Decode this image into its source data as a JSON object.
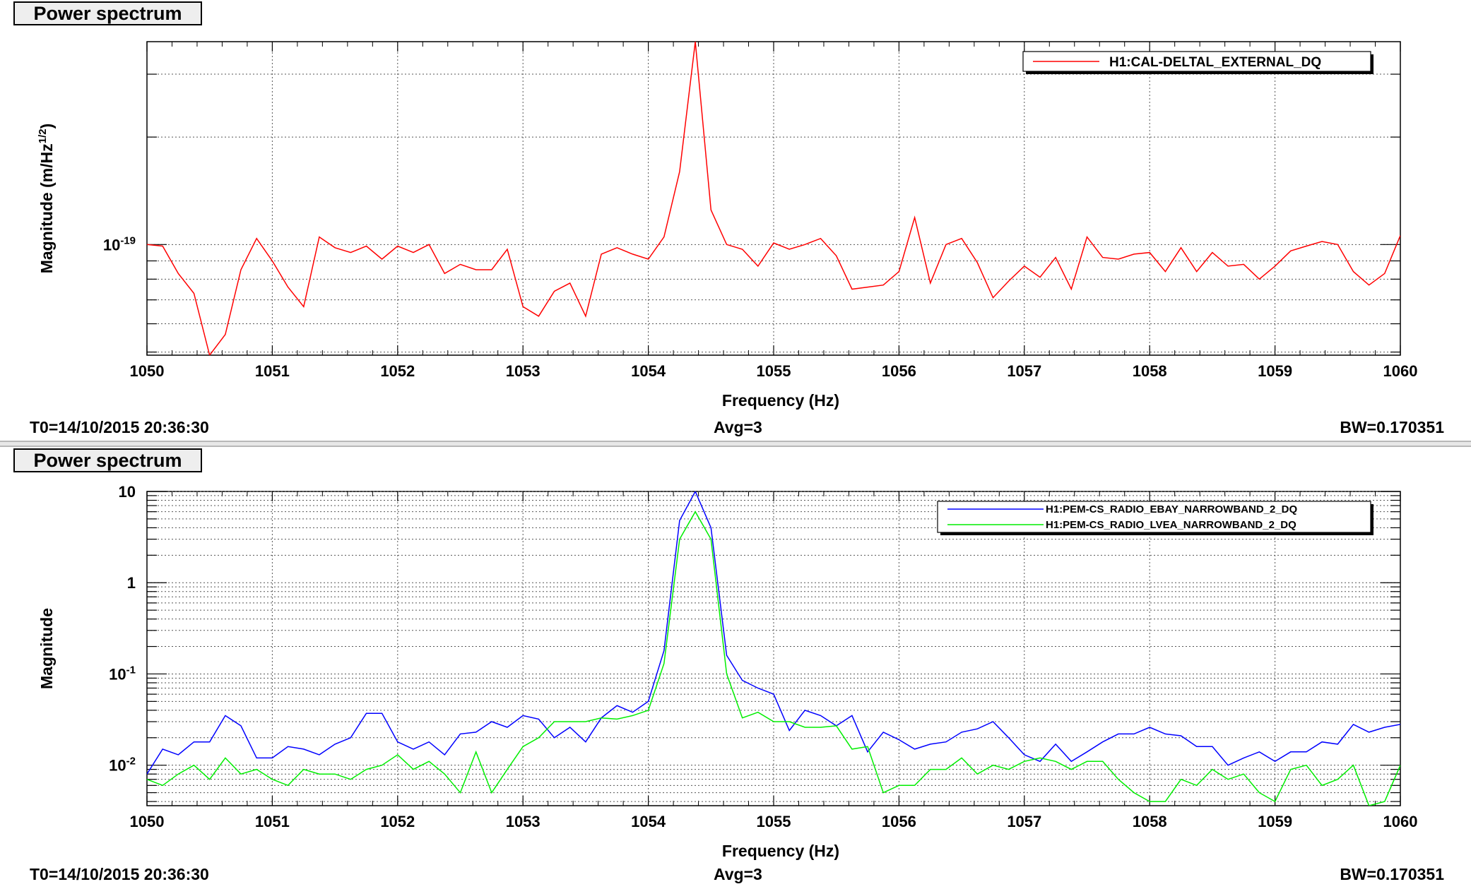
{
  "panels": [
    {
      "title": "Power spectrum",
      "t0": "T0=14/10/2015 20:36:30",
      "avg": "Avg=3",
      "bw": "BW=0.170351",
      "chart_data": {
        "type": "line",
        "xlabel": "Frequency (Hz)",
        "ylabel": "Magnitude (m/Hz^(1/2))",
        "ylabel_parts": {
          "main": "Magnitude (m/Hz",
          "sup": "1/2",
          "tail": ")"
        },
        "log_y": true,
        "grid": true,
        "legend_position": "top-right",
        "xlim": [
          1050,
          1060
        ],
        "ylim": [
          4.9e-20,
          3.7e-19
        ],
        "x_ticks": [
          "1050",
          "1051",
          "1052",
          "1053",
          "1054",
          "1055",
          "1056",
          "1057",
          "1058",
          "1059",
          "1060"
        ],
        "y_ticks": [
          {
            "value": 1e-19,
            "base": "10",
            "exp": "-19"
          }
        ],
        "series": [
          {
            "name": "H1:CAL-DELTAL_EXTERNAL_DQ",
            "color": "#ff0000",
            "x_start": 1050,
            "x_step": 0.125,
            "values": [
              1e-19,
              9.9e-20,
              8.3e-20,
              7.3e-20,
              4.9e-20,
              5.6e-20,
              8.5e-20,
              1.04e-19,
              9e-20,
              7.6e-20,
              6.7e-20,
              1.05e-19,
              9.8e-20,
              9.5e-20,
              9.9e-20,
              9.1e-20,
              9.9e-20,
              9.5e-20,
              1e-19,
              8.3e-20,
              8.8e-20,
              8.5e-20,
              8.5e-20,
              9.7e-20,
              6.7e-20,
              6.3e-20,
              7.4e-20,
              7.8e-20,
              6.3e-20,
              9.4e-20,
              9.8e-20,
              9.4e-20,
              9.1e-20,
              1.05e-19,
              1.6e-19,
              3.7e-19,
              1.25e-19,
              1e-19,
              9.7e-20,
              8.7e-20,
              1.01e-19,
              9.7e-20,
              1e-19,
              1.04e-19,
              9.3e-20,
              7.5e-20,
              7.6e-20,
              7.7e-20,
              8.4e-20,
              1.19e-19,
              7.8e-20,
              1e-19,
              1.04e-19,
              8.9e-20,
              7.1e-20,
              7.9e-20,
              8.7e-20,
              8.1e-20,
              9.2e-20,
              7.5e-20,
              1.05e-19,
              9.2e-20,
              9.1e-20,
              9.4e-20,
              9.5e-20,
              8.4e-20,
              9.8e-20,
              8.4e-20,
              9.5e-20,
              8.7e-20,
              8.8e-20,
              8e-20,
              8.7e-20,
              9.6e-20,
              9.9e-20,
              1.02e-19,
              1e-19,
              8.4e-20,
              7.7e-20,
              8.3e-20,
              1.06e-19
            ]
          }
        ]
      }
    },
    {
      "title": "Power spectrum",
      "t0": "T0=14/10/2015 20:36:30",
      "avg": "Avg=3",
      "bw": "BW=0.170351",
      "chart_data": {
        "type": "line",
        "xlabel": "Frequency (Hz)",
        "ylabel": "Magnitude",
        "log_y": true,
        "grid": true,
        "legend_position": "top-right",
        "xlim": [
          1050,
          1060
        ],
        "ylim": [
          0.0036,
          10
        ],
        "x_ticks": [
          "1050",
          "1051",
          "1052",
          "1053",
          "1054",
          "1055",
          "1056",
          "1057",
          "1058",
          "1059",
          "1060"
        ],
        "y_ticks": [
          {
            "value": 10,
            "label": "10"
          },
          {
            "value": 1,
            "label": "1"
          },
          {
            "value": 0.1,
            "base": "10",
            "exp": "-1"
          },
          {
            "value": 0.01,
            "base": "10",
            "exp": "-2"
          }
        ],
        "series": [
          {
            "name": "H1:PEM-CS_RADIO_EBAY_NARROWBAND_2_DQ",
            "color": "#0000ff",
            "x_start": 1050,
            "x_step": 0.125,
            "values": [
              0.008,
              0.015,
              0.013,
              0.018,
              0.018,
              0.035,
              0.027,
              0.012,
              0.012,
              0.016,
              0.015,
              0.013,
              0.017,
              0.02,
              0.037,
              0.037,
              0.018,
              0.015,
              0.018,
              0.013,
              0.022,
              0.023,
              0.03,
              0.026,
              0.035,
              0.032,
              0.02,
              0.026,
              0.018,
              0.033,
              0.045,
              0.038,
              0.05,
              0.18,
              4.8,
              10,
              4.0,
              0.16,
              0.085,
              0.07,
              0.06,
              0.024,
              0.04,
              0.035,
              0.027,
              0.035,
              0.014,
              0.023,
              0.019,
              0.015,
              0.017,
              0.018,
              0.023,
              0.025,
              0.03,
              0.02,
              0.013,
              0.011,
              0.017,
              0.011,
              0.014,
              0.018,
              0.022,
              0.022,
              0.026,
              0.022,
              0.021,
              0.016,
              0.016,
              0.01,
              0.012,
              0.014,
              0.011,
              0.014,
              0.014,
              0.018,
              0.017,
              0.028,
              0.023,
              0.026,
              0.028
            ]
          },
          {
            "name": "H1:PEM-CS_RADIO_LVEA_NARROWBAND_2_DQ",
            "color": "#00ee00",
            "x_start": 1050,
            "x_step": 0.125,
            "values": [
              0.007,
              0.006,
              0.008,
              0.01,
              0.007,
              0.012,
              0.008,
              0.009,
              0.007,
              0.006,
              0.009,
              0.008,
              0.008,
              0.007,
              0.009,
              0.01,
              0.013,
              0.009,
              0.011,
              0.008,
              0.005,
              0.014,
              0.005,
              0.009,
              0.016,
              0.02,
              0.03,
              0.03,
              0.03,
              0.033,
              0.032,
              0.035,
              0.04,
              0.13,
              3.0,
              6.0,
              3.0,
              0.1,
              0.033,
              0.038,
              0.03,
              0.03,
              0.026,
              0.026,
              0.027,
              0.015,
              0.016,
              0.005,
              0.006,
              0.006,
              0.009,
              0.009,
              0.012,
              0.008,
              0.01,
              0.009,
              0.011,
              0.012,
              0.011,
              0.009,
              0.011,
              0.011,
              0.007,
              0.005,
              0.004,
              0.004,
              0.007,
              0.006,
              0.009,
              0.007,
              0.008,
              0.005,
              0.004,
              0.009,
              0.01,
              0.006,
              0.007,
              0.01,
              0.0036,
              0.004,
              0.01
            ]
          }
        ]
      }
    }
  ]
}
